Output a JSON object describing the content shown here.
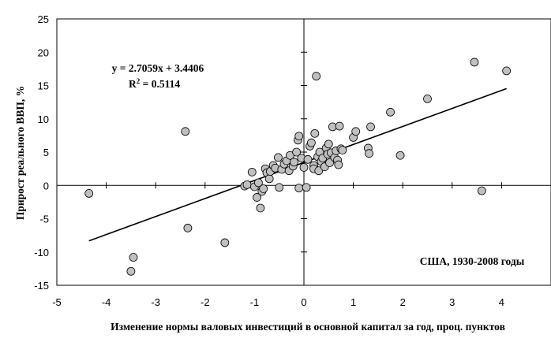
{
  "chart_data": {
    "type": "scatter",
    "xlabel": "Изменение нормы валовых инвестиций в основной капитал за год, проц. пунктов",
    "ylabel": "Прирост реального ВВП, %",
    "xlim": [
      -5,
      5
    ],
    "ylim": [
      -15,
      25
    ],
    "xticks": [
      "-5",
      "-4",
      "-3",
      "-2",
      "-1",
      "0",
      "1",
      "2",
      "3",
      "4"
    ],
    "yticks": [
      "25",
      "20",
      "15",
      "10",
      "5",
      "0",
      "-5",
      "-10",
      "-15"
    ],
    "annotation": "США, 1930-2008 годы",
    "trendline": {
      "equation": "y = 2.7059x + 3.4406",
      "r2": "R",
      "r2_sup": "2",
      "r2_value": " = 0.5114",
      "slope": 2.7059,
      "intercept": 3.4406,
      "x_range": [
        -4.35,
        4.1
      ]
    },
    "grid": false,
    "marker_fill": "#c0c0c0",
    "marker_stroke": "#000000",
    "points": [
      [
        -4.35,
        -1.2
      ],
      [
        -3.5,
        -12.9
      ],
      [
        -3.45,
        -10.8
      ],
      [
        -2.4,
        8.1
      ],
      [
        -2.35,
        -6.4
      ],
      [
        -1.6,
        -8.6
      ],
      [
        -1.2,
        -0.1
      ],
      [
        -1.15,
        0.1
      ],
      [
        -1.05,
        2.0
      ],
      [
        -1.0,
        -0.2
      ],
      [
        -0.95,
        -1.8
      ],
      [
        -0.92,
        0.4
      ],
      [
        -0.88,
        -3.4
      ],
      [
        -0.85,
        -0.9
      ],
      [
        -0.82,
        -0.5
      ],
      [
        -0.78,
        2.5
      ],
      [
        -0.75,
        1.9
      ],
      [
        -0.7,
        1.0
      ],
      [
        -0.68,
        2.1
      ],
      [
        -0.62,
        3.0
      ],
      [
        -0.58,
        2.6
      ],
      [
        -0.52,
        4.2
      ],
      [
        -0.5,
        -0.3
      ],
      [
        -0.45,
        2.4
      ],
      [
        -0.4,
        3.2
      ],
      [
        -0.35,
        3.7
      ],
      [
        -0.3,
        2.2
      ],
      [
        -0.28,
        4.5
      ],
      [
        -0.22,
        2.9
      ],
      [
        -0.2,
        3.5
      ],
      [
        -0.15,
        5.0
      ],
      [
        -0.12,
        6.8
      ],
      [
        -0.1,
        7.4
      ],
      [
        -0.1,
        -0.4
      ],
      [
        -0.05,
        4.1
      ],
      [
        0.0,
        2.7
      ],
      [
        0.05,
        -0.3
      ],
      [
        0.08,
        3.9
      ],
      [
        0.12,
        5.9
      ],
      [
        0.15,
        6.4
      ],
      [
        0.2,
        3.0
      ],
      [
        0.2,
        2.5
      ],
      [
        0.22,
        7.8
      ],
      [
        0.25,
        16.4
      ],
      [
        0.28,
        4.3
      ],
      [
        0.3,
        2.2
      ],
      [
        0.32,
        5.0
      ],
      [
        0.35,
        3.6
      ],
      [
        0.38,
        4.1
      ],
      [
        0.42,
        2.8
      ],
      [
        0.45,
        5.6
      ],
      [
        0.48,
        4.7
      ],
      [
        0.5,
        6.2
      ],
      [
        0.52,
        3.4
      ],
      [
        0.55,
        4.9
      ],
      [
        0.58,
        8.8
      ],
      [
        0.62,
        4.2
      ],
      [
        0.65,
        5.2
      ],
      [
        0.68,
        3.8
      ],
      [
        0.7,
        3.1
      ],
      [
        0.72,
        8.9
      ],
      [
        0.75,
        5.5
      ],
      [
        0.78,
        5.3
      ],
      [
        1.0,
        7.2
      ],
      [
        1.05,
        8.1
      ],
      [
        1.3,
        5.6
      ],
      [
        1.32,
        4.8
      ],
      [
        1.35,
        8.8
      ],
      [
        1.75,
        11.0
      ],
      [
        1.95,
        4.5
      ],
      [
        2.5,
        13.0
      ],
      [
        3.45,
        18.5
      ],
      [
        3.6,
        -0.8
      ],
      [
        4.1,
        17.2
      ]
    ]
  }
}
